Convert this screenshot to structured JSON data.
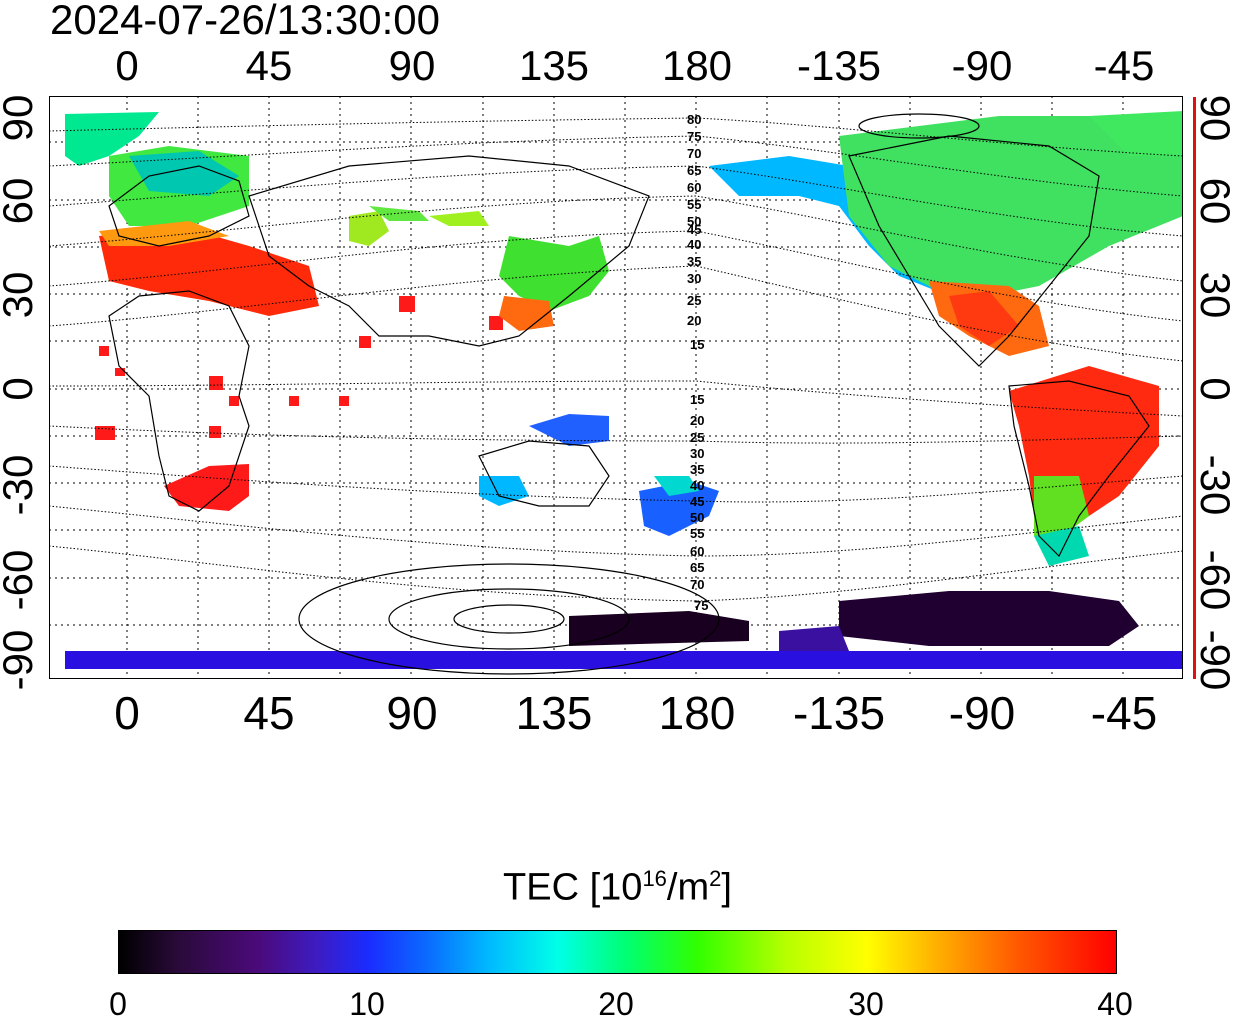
{
  "timestamp": "2024-07-26/13:30:00",
  "lon_ticks": [
    "0",
    "45",
    "90",
    "135",
    "180",
    "-135",
    "-90",
    "-45"
  ],
  "lat_ticks": [
    "90",
    "60",
    "30",
    "0",
    "-30",
    "-60",
    "-90"
  ],
  "contour_labels_north": [
    "80",
    "75",
    "70",
    "65",
    "60",
    "55",
    "50",
    "45",
    "40",
    "35",
    "30",
    "25",
    "20",
    "15"
  ],
  "contour_labels_south": [
    "15",
    "20",
    "25",
    "30",
    "35",
    "40",
    "45",
    "50",
    "55",
    "60",
    "65",
    "70",
    "75"
  ],
  "colorbar": {
    "title_prefix": "TEC  [10",
    "title_exp": "16",
    "title_mid": "/m",
    "title_exp2": "2",
    "title_suffix": "]",
    "ticks": [
      "0",
      "10",
      "20",
      "30",
      "40"
    ],
    "range": [
      0,
      40
    ],
    "colors": [
      "#000000",
      "#4b0a7a",
      "#1a2cff",
      "#00ffe8",
      "#30ff00",
      "#ffff00",
      "#ff5a00",
      "#ff0000"
    ]
  }
}
